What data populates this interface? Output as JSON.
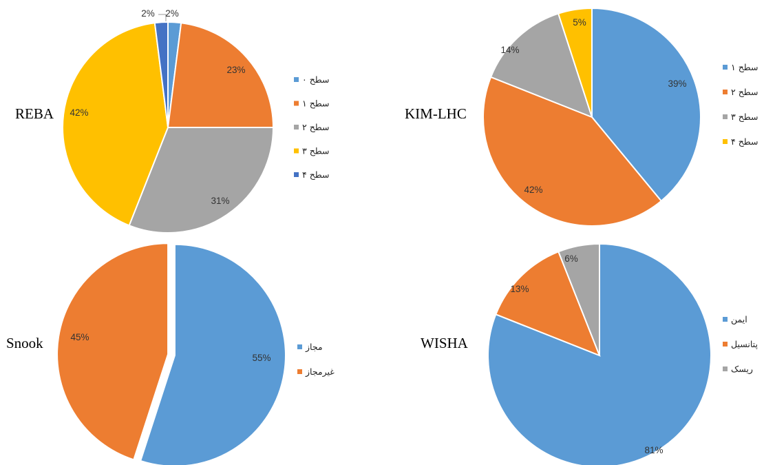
{
  "chart_data": [
    {
      "type": "pie",
      "title": "REBA",
      "categories": [
        "سطح ۰",
        "سطح ۱",
        "سطح ۲",
        "سطح ۳",
        "سطح ۴"
      ],
      "values": [
        2,
        23,
        31,
        42,
        2
      ],
      "value_labels": [
        "2%",
        "23%",
        "31%",
        "42%",
        "2%"
      ],
      "colors": [
        "#5B9BD5",
        "#ED7D31",
        "#A5A5A5",
        "#FFC000",
        "#4472C4"
      ],
      "legend_position": "right"
    },
    {
      "type": "pie",
      "title": "KIM-LHC",
      "categories": [
        "سطح ۱",
        "سطح ۲",
        "سطح ۳",
        "سطح ۴"
      ],
      "values": [
        39,
        42,
        14,
        5
      ],
      "value_labels": [
        "39%",
        "42%",
        "14%",
        "5%"
      ],
      "colors": [
        "#5B9BD5",
        "#ED7D31",
        "#A5A5A5",
        "#FFC000"
      ],
      "legend_position": "right"
    },
    {
      "type": "pie",
      "title": "Snook",
      "categories": [
        "مجاز",
        "غیرمجاز"
      ],
      "values": [
        55,
        45
      ],
      "value_labels": [
        "55%",
        "45%"
      ],
      "colors": [
        "#5B9BD5",
        "#ED7D31"
      ],
      "legend_position": "right"
    },
    {
      "type": "pie",
      "title": "WISHA",
      "categories": [
        "ایمن",
        "پتانسیل",
        "ریسک"
      ],
      "values": [
        81,
        13,
        6
      ],
      "value_labels": [
        "81%",
        "13%",
        "6%"
      ],
      "colors": [
        "#5B9BD5",
        "#ED7D31",
        "#A5A5A5"
      ],
      "legend_position": "right"
    }
  ]
}
